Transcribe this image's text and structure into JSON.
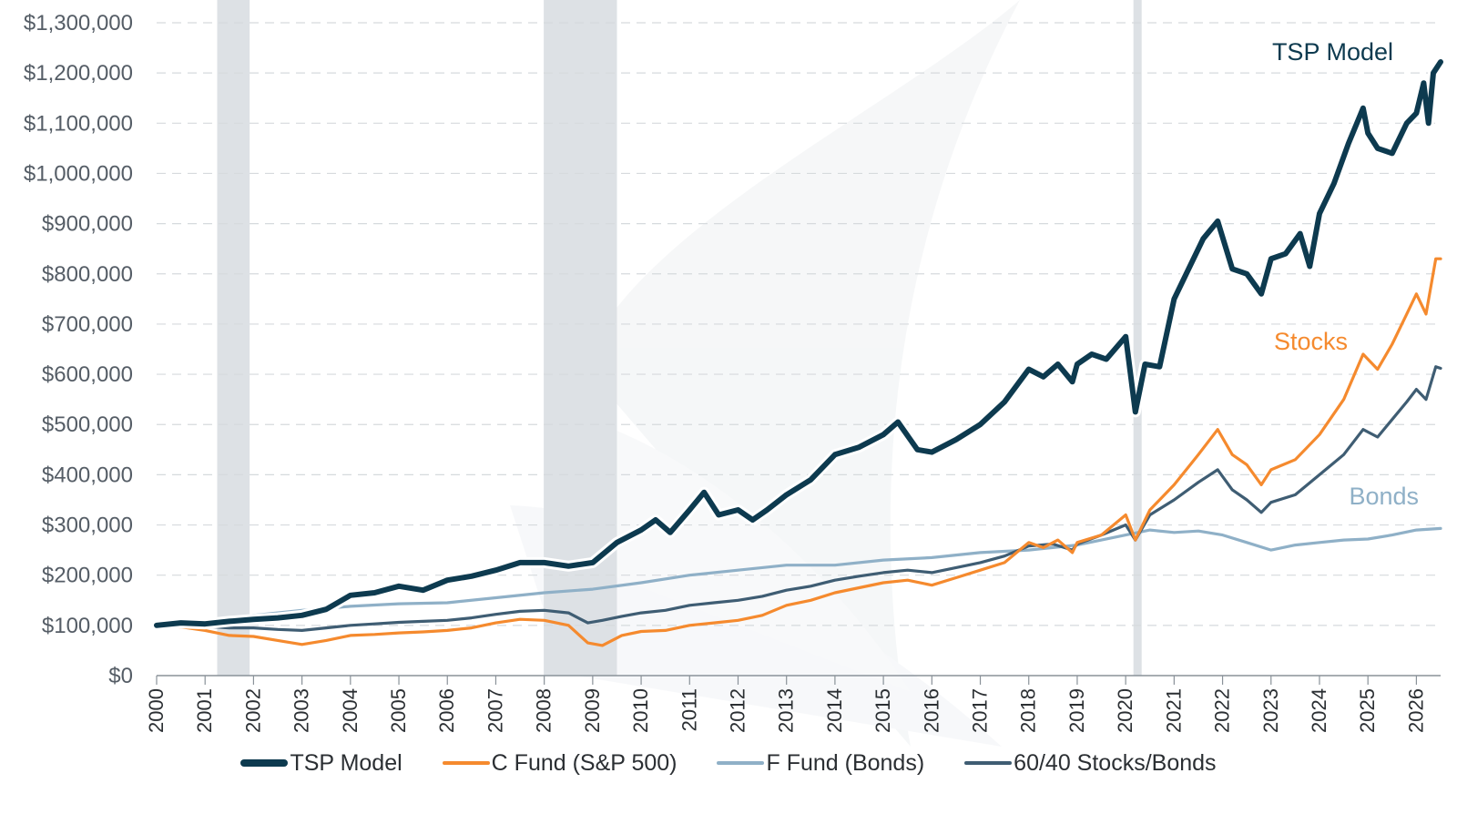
{
  "chart_data": {
    "type": "line",
    "title": "",
    "xlabel": "",
    "ylabel": "",
    "x_tick_labels": [
      "2000",
      "2001",
      "2002",
      "2003",
      "2004",
      "2005",
      "2006",
      "2007",
      "2008",
      "2009",
      "2010",
      "2011",
      "2012",
      "2013",
      "2014",
      "2015",
      "2016",
      "2017",
      "2018",
      "2019",
      "2020",
      "2021",
      "2022",
      "2023",
      "2024",
      "2025",
      "2026"
    ],
    "y_tick_labels": [
      "$0",
      "$100,000",
      "$200,000",
      "$300,000",
      "$400,000",
      "$500,000",
      "$600,000",
      "$700,000",
      "$800,000",
      "$900,000",
      "$1,000,000",
      "$1,100,000",
      "$1,200,000",
      "$1,300,000"
    ],
    "xlim": [
      2000,
      2026.5
    ],
    "ylim": [
      0,
      1300000
    ],
    "grid": "horizontal-dashed",
    "legend_position": "bottom",
    "shaded_periods": [
      [
        2001.25,
        2001.92
      ],
      [
        2007.99,
        2009.5
      ],
      [
        2020.16,
        2020.33
      ]
    ],
    "series": [
      {
        "name": "TSP Model",
        "end_label": "TSP Model",
        "color": "#0d3a4f",
        "points": [
          [
            2000,
            100000
          ],
          [
            2000.5,
            105000
          ],
          [
            2001,
            103000
          ],
          [
            2001.5,
            108000
          ],
          [
            2002,
            112000
          ],
          [
            2002.5,
            115000
          ],
          [
            2003,
            120000
          ],
          [
            2003.5,
            132000
          ],
          [
            2004,
            160000
          ],
          [
            2004.5,
            165000
          ],
          [
            2005,
            178000
          ],
          [
            2005.5,
            170000
          ],
          [
            2006,
            190000
          ],
          [
            2006.5,
            198000
          ],
          [
            2007,
            210000
          ],
          [
            2007.5,
            225000
          ],
          [
            2008,
            225000
          ],
          [
            2008.5,
            218000
          ],
          [
            2009,
            225000
          ],
          [
            2009.5,
            265000
          ],
          [
            2010,
            290000
          ],
          [
            2010.3,
            310000
          ],
          [
            2010.6,
            285000
          ],
          [
            2011,
            330000
          ],
          [
            2011.3,
            365000
          ],
          [
            2011.6,
            320000
          ],
          [
            2012,
            330000
          ],
          [
            2012.3,
            310000
          ],
          [
            2012.6,
            330000
          ],
          [
            2013,
            360000
          ],
          [
            2013.5,
            390000
          ],
          [
            2014,
            440000
          ],
          [
            2014.5,
            455000
          ],
          [
            2015,
            480000
          ],
          [
            2015.3,
            505000
          ],
          [
            2015.7,
            450000
          ],
          [
            2016,
            445000
          ],
          [
            2016.5,
            470000
          ],
          [
            2017,
            500000
          ],
          [
            2017.5,
            545000
          ],
          [
            2018,
            610000
          ],
          [
            2018.3,
            595000
          ],
          [
            2018.6,
            620000
          ],
          [
            2018.9,
            585000
          ],
          [
            2019,
            620000
          ],
          [
            2019.3,
            640000
          ],
          [
            2019.6,
            630000
          ],
          [
            2020,
            675000
          ],
          [
            2020.2,
            525000
          ],
          [
            2020.4,
            620000
          ],
          [
            2020.7,
            615000
          ],
          [
            2021,
            750000
          ],
          [
            2021.3,
            810000
          ],
          [
            2021.6,
            870000
          ],
          [
            2021.9,
            905000
          ],
          [
            2022.2,
            810000
          ],
          [
            2022.5,
            800000
          ],
          [
            2022.8,
            760000
          ],
          [
            2023,
            830000
          ],
          [
            2023.3,
            840000
          ],
          [
            2023.6,
            880000
          ],
          [
            2023.8,
            815000
          ],
          [
            2024,
            920000
          ],
          [
            2024.3,
            980000
          ],
          [
            2024.6,
            1060000
          ],
          [
            2024.9,
            1130000
          ],
          [
            2025,
            1080000
          ],
          [
            2025.2,
            1050000
          ],
          [
            2025.5,
            1040000
          ],
          [
            2025.8,
            1100000
          ],
          [
            2026,
            1120000
          ],
          [
            2026.15,
            1180000
          ],
          [
            2026.25,
            1100000
          ],
          [
            2026.35,
            1200000
          ],
          [
            2026.5,
            1222000
          ]
        ]
      },
      {
        "name": "C Fund (S&P 500)",
        "end_label": "Stocks",
        "color": "#f58a2e",
        "points": [
          [
            2000,
            95000
          ],
          [
            2000.5,
            97000
          ],
          [
            2001,
            90000
          ],
          [
            2001.5,
            80000
          ],
          [
            2002,
            78000
          ],
          [
            2002.5,
            70000
          ],
          [
            2003,
            62000
          ],
          [
            2003.5,
            70000
          ],
          [
            2004,
            80000
          ],
          [
            2004.5,
            82000
          ],
          [
            2005,
            85000
          ],
          [
            2005.5,
            87000
          ],
          [
            2006,
            90000
          ],
          [
            2006.5,
            95000
          ],
          [
            2007,
            105000
          ],
          [
            2007.5,
            112000
          ],
          [
            2008,
            110000
          ],
          [
            2008.5,
            100000
          ],
          [
            2008.9,
            65000
          ],
          [
            2009.2,
            60000
          ],
          [
            2009.6,
            80000
          ],
          [
            2010,
            88000
          ],
          [
            2010.5,
            90000
          ],
          [
            2011,
            100000
          ],
          [
            2011.5,
            105000
          ],
          [
            2012,
            110000
          ],
          [
            2012.5,
            120000
          ],
          [
            2013,
            140000
          ],
          [
            2013.5,
            150000
          ],
          [
            2014,
            165000
          ],
          [
            2014.5,
            175000
          ],
          [
            2015,
            185000
          ],
          [
            2015.5,
            190000
          ],
          [
            2016,
            180000
          ],
          [
            2016.5,
            195000
          ],
          [
            2017,
            210000
          ],
          [
            2017.5,
            225000
          ],
          [
            2018,
            265000
          ],
          [
            2018.3,
            255000
          ],
          [
            2018.6,
            270000
          ],
          [
            2018.9,
            245000
          ],
          [
            2019,
            265000
          ],
          [
            2019.5,
            280000
          ],
          [
            2020,
            320000
          ],
          [
            2020.2,
            270000
          ],
          [
            2020.5,
            330000
          ],
          [
            2021,
            380000
          ],
          [
            2021.5,
            440000
          ],
          [
            2021.9,
            490000
          ],
          [
            2022.2,
            440000
          ],
          [
            2022.5,
            420000
          ],
          [
            2022.8,
            380000
          ],
          [
            2023,
            410000
          ],
          [
            2023.5,
            430000
          ],
          [
            2024,
            480000
          ],
          [
            2024.5,
            550000
          ],
          [
            2024.9,
            640000
          ],
          [
            2025.2,
            610000
          ],
          [
            2025.5,
            660000
          ],
          [
            2025.8,
            720000
          ],
          [
            2026,
            760000
          ],
          [
            2026.2,
            720000
          ],
          [
            2026.4,
            830000
          ],
          [
            2026.5,
            830000
          ]
        ]
      },
      {
        "name": "F Fund (Bonds)",
        "end_label": "Bonds",
        "color": "#8fb0c7",
        "points": [
          [
            2000,
            100000
          ],
          [
            2001,
            108000
          ],
          [
            2002,
            120000
          ],
          [
            2003,
            130000
          ],
          [
            2004,
            138000
          ],
          [
            2005,
            143000
          ],
          [
            2006,
            145000
          ],
          [
            2007,
            155000
          ],
          [
            2008,
            165000
          ],
          [
            2009,
            172000
          ],
          [
            2010,
            185000
          ],
          [
            2011,
            200000
          ],
          [
            2012,
            210000
          ],
          [
            2013,
            220000
          ],
          [
            2014,
            220000
          ],
          [
            2015,
            230000
          ],
          [
            2016,
            235000
          ],
          [
            2017,
            245000
          ],
          [
            2018,
            250000
          ],
          [
            2019,
            260000
          ],
          [
            2020,
            280000
          ],
          [
            2020.5,
            290000
          ],
          [
            2021,
            285000
          ],
          [
            2021.5,
            288000
          ],
          [
            2022,
            280000
          ],
          [
            2022.5,
            265000
          ],
          [
            2023,
            250000
          ],
          [
            2023.5,
            260000
          ],
          [
            2024,
            265000
          ],
          [
            2024.5,
            270000
          ],
          [
            2025,
            272000
          ],
          [
            2025.5,
            280000
          ],
          [
            2026,
            290000
          ],
          [
            2026.5,
            293000
          ]
        ]
      },
      {
        "name": "60/40 Stocks/Bonds",
        "end_label": "",
        "color": "#3f5d73",
        "points": [
          [
            2000,
            100000
          ],
          [
            2000.5,
            100000
          ],
          [
            2001,
            98000
          ],
          [
            2001.5,
            95000
          ],
          [
            2002,
            95000
          ],
          [
            2002.5,
            92000
          ],
          [
            2003,
            90000
          ],
          [
            2003.5,
            95000
          ],
          [
            2004,
            100000
          ],
          [
            2004.5,
            103000
          ],
          [
            2005,
            106000
          ],
          [
            2005.5,
            108000
          ],
          [
            2006,
            110000
          ],
          [
            2006.5,
            115000
          ],
          [
            2007,
            122000
          ],
          [
            2007.5,
            128000
          ],
          [
            2008,
            130000
          ],
          [
            2008.5,
            125000
          ],
          [
            2008.9,
            105000
          ],
          [
            2009.2,
            110000
          ],
          [
            2009.6,
            118000
          ],
          [
            2010,
            125000
          ],
          [
            2010.5,
            130000
          ],
          [
            2011,
            140000
          ],
          [
            2011.5,
            145000
          ],
          [
            2012,
            150000
          ],
          [
            2012.5,
            158000
          ],
          [
            2013,
            170000
          ],
          [
            2013.5,
            178000
          ],
          [
            2014,
            190000
          ],
          [
            2014.5,
            198000
          ],
          [
            2015,
            205000
          ],
          [
            2015.5,
            210000
          ],
          [
            2016,
            205000
          ],
          [
            2016.5,
            215000
          ],
          [
            2017,
            225000
          ],
          [
            2017.5,
            238000
          ],
          [
            2018,
            258000
          ],
          [
            2018.5,
            262000
          ],
          [
            2018.9,
            250000
          ],
          [
            2019,
            262000
          ],
          [
            2019.5,
            280000
          ],
          [
            2020,
            300000
          ],
          [
            2020.2,
            270000
          ],
          [
            2020.5,
            320000
          ],
          [
            2021,
            350000
          ],
          [
            2021.5,
            385000
          ],
          [
            2021.9,
            410000
          ],
          [
            2022.2,
            370000
          ],
          [
            2022.5,
            350000
          ],
          [
            2022.8,
            325000
          ],
          [
            2023,
            345000
          ],
          [
            2023.5,
            360000
          ],
          [
            2024,
            400000
          ],
          [
            2024.5,
            440000
          ],
          [
            2024.9,
            490000
          ],
          [
            2025.2,
            475000
          ],
          [
            2025.5,
            510000
          ],
          [
            2025.8,
            545000
          ],
          [
            2026,
            570000
          ],
          [
            2026.2,
            550000
          ],
          [
            2026.4,
            615000
          ],
          [
            2026.5,
            612000
          ]
        ]
      }
    ]
  }
}
